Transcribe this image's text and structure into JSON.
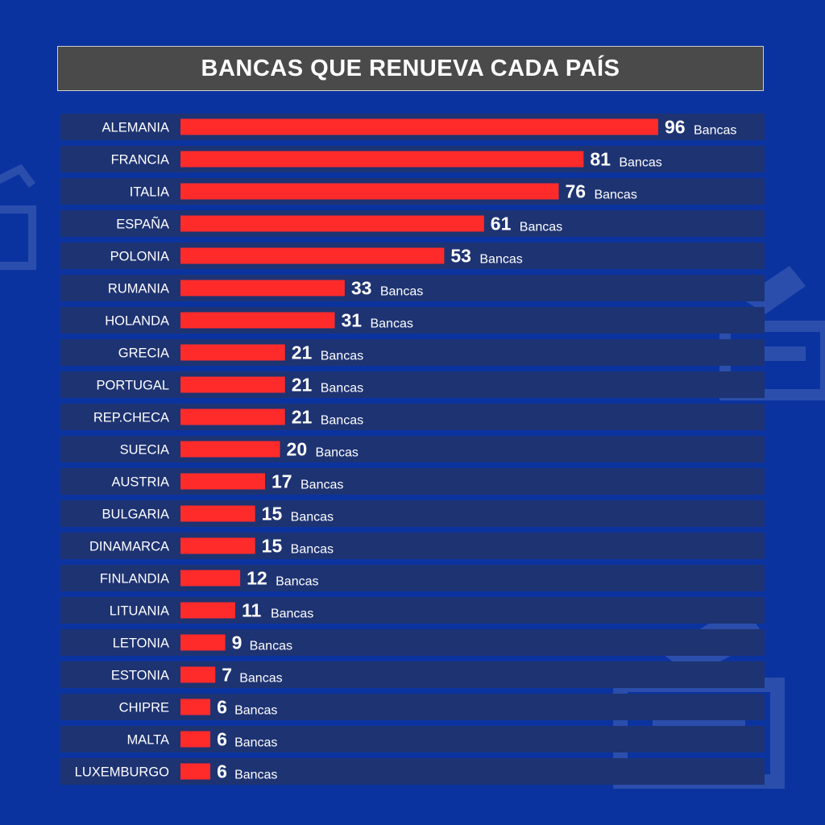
{
  "chart_data": {
    "type": "bar",
    "orientation": "horizontal",
    "title": "BANCAS QUE RENUEVA CADA PAÍS",
    "unit_label": "Bancas",
    "categories": [
      "ALEMANIA",
      "FRANCIA",
      "ITALIA",
      "ESPAÑA",
      "POLONIA",
      "RUMANIA",
      "HOLANDA",
      "GRECIA",
      "PORTUGAL",
      "REP.CHECA",
      "SUECIA",
      "AUSTRIA",
      "BULGARIA",
      "DINAMARCA",
      "FINLANDIA",
      "LITUANIA",
      "LETONIA",
      "ESTONIA",
      "CHIPRE",
      "MALTA",
      "LUXEMBURGO"
    ],
    "values": [
      96,
      81,
      76,
      61,
      53,
      33,
      31,
      21,
      21,
      21,
      20,
      17,
      15,
      15,
      12,
      11,
      9,
      7,
      6,
      6,
      6
    ],
    "xlim": [
      0,
      96
    ],
    "grid": false,
    "legend": "none",
    "colors": {
      "bar": "#ff2b2b",
      "row_background": "#1e3372",
      "page_background": "#0b33a0",
      "title_background": "#4a4a4a"
    }
  }
}
